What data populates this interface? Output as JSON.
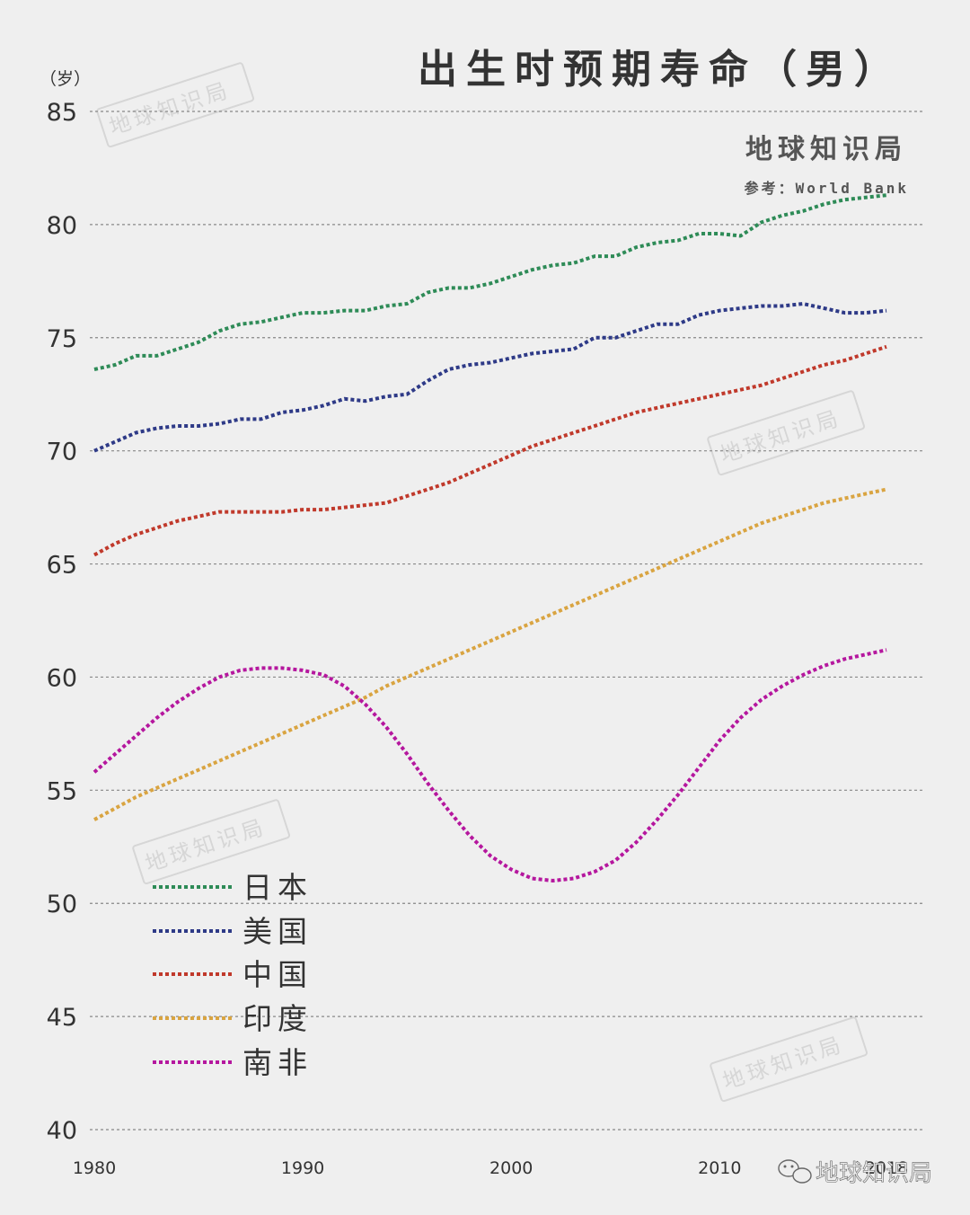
{
  "title": "出生时预期寿命（男）",
  "brand": "地球知识局",
  "source": "参考：World Bank",
  "unit_label": "（岁）",
  "watermark": "地球知识局",
  "footer_label": "地球知识局",
  "chart_data": {
    "type": "line",
    "ylim": [
      40,
      85
    ],
    "yticks": [
      40,
      45,
      50,
      55,
      60,
      65,
      70,
      75,
      80,
      85
    ],
    "xlim": [
      1980,
      2018
    ],
    "xticks": [
      1980,
      1990,
      2000,
      2010,
      2018
    ],
    "grid": true,
    "legend_position": "bottom-left",
    "series": [
      {
        "name": "日本",
        "color": "#2e8b57",
        "x": [
          1980,
          1981,
          1982,
          1983,
          1984,
          1985,
          1986,
          1987,
          1988,
          1989,
          1990,
          1991,
          1992,
          1993,
          1994,
          1995,
          1996,
          1997,
          1998,
          1999,
          2000,
          2001,
          2002,
          2003,
          2004,
          2005,
          2006,
          2007,
          2008,
          2009,
          2010,
          2011,
          2012,
          2013,
          2014,
          2015,
          2016,
          2017,
          2018
        ],
        "values": [
          73.6,
          73.8,
          74.2,
          74.2,
          74.5,
          74.8,
          75.3,
          75.6,
          75.7,
          75.9,
          76.1,
          76.1,
          76.2,
          76.2,
          76.4,
          76.5,
          77.0,
          77.2,
          77.2,
          77.4,
          77.7,
          78.0,
          78.2,
          78.3,
          78.6,
          78.6,
          79.0,
          79.2,
          79.3,
          79.6,
          79.6,
          79.5,
          80.1,
          80.4,
          80.6,
          80.9,
          81.1,
          81.2,
          81.3
        ]
      },
      {
        "name": "美国",
        "color": "#2e3a87",
        "x": [
          1980,
          1981,
          1982,
          1983,
          1984,
          1985,
          1986,
          1987,
          1988,
          1989,
          1990,
          1991,
          1992,
          1993,
          1994,
          1995,
          1996,
          1997,
          1998,
          1999,
          2000,
          2001,
          2002,
          2003,
          2004,
          2005,
          2006,
          2007,
          2008,
          2009,
          2010,
          2011,
          2012,
          2013,
          2014,
          2015,
          2016,
          2017,
          2018
        ],
        "values": [
          70.0,
          70.4,
          70.8,
          71.0,
          71.1,
          71.1,
          71.2,
          71.4,
          71.4,
          71.7,
          71.8,
          72.0,
          72.3,
          72.2,
          72.4,
          72.5,
          73.1,
          73.6,
          73.8,
          73.9,
          74.1,
          74.3,
          74.4,
          74.5,
          75.0,
          75.0,
          75.3,
          75.6,
          75.6,
          76.0,
          76.2,
          76.3,
          76.4,
          76.4,
          76.5,
          76.3,
          76.1,
          76.1,
          76.2
        ]
      },
      {
        "name": "中国",
        "color": "#c0392b",
        "x": [
          1980,
          1981,
          1982,
          1983,
          1984,
          1985,
          1986,
          1987,
          1988,
          1989,
          1990,
          1991,
          1992,
          1993,
          1994,
          1995,
          1996,
          1997,
          1998,
          1999,
          2000,
          2001,
          2002,
          2003,
          2004,
          2005,
          2006,
          2007,
          2008,
          2009,
          2010,
          2011,
          2012,
          2013,
          2014,
          2015,
          2016,
          2017,
          2018
        ],
        "values": [
          65.4,
          65.9,
          66.3,
          66.6,
          66.9,
          67.1,
          67.3,
          67.3,
          67.3,
          67.3,
          67.4,
          67.4,
          67.5,
          67.6,
          67.7,
          68.0,
          68.3,
          68.6,
          69.0,
          69.4,
          69.8,
          70.2,
          70.5,
          70.8,
          71.1,
          71.4,
          71.7,
          71.9,
          72.1,
          72.3,
          72.5,
          72.7,
          72.9,
          73.2,
          73.5,
          73.8,
          74.0,
          74.3,
          74.6
        ]
      },
      {
        "name": "印度",
        "color": "#d9a441",
        "x": [
          1980,
          1981,
          1982,
          1983,
          1984,
          1985,
          1986,
          1987,
          1988,
          1989,
          1990,
          1991,
          1992,
          1993,
          1994,
          1995,
          1996,
          1997,
          1998,
          1999,
          2000,
          2001,
          2002,
          2003,
          2004,
          2005,
          2006,
          2007,
          2008,
          2009,
          2010,
          2011,
          2012,
          2013,
          2014,
          2015,
          2016,
          2017,
          2018
        ],
        "values": [
          53.7,
          54.2,
          54.7,
          55.1,
          55.5,
          55.9,
          56.3,
          56.7,
          57.1,
          57.5,
          57.9,
          58.3,
          58.7,
          59.1,
          59.6,
          60.0,
          60.4,
          60.8,
          61.2,
          61.6,
          62.0,
          62.4,
          62.8,
          63.2,
          63.6,
          64.0,
          64.4,
          64.8,
          65.2,
          65.6,
          66.0,
          66.4,
          66.8,
          67.1,
          67.4,
          67.7,
          67.9,
          68.1,
          68.3
        ]
      },
      {
        "name": "南非",
        "color": "#b5179e",
        "x": [
          1980,
          1981,
          1982,
          1983,
          1984,
          1985,
          1986,
          1987,
          1988,
          1989,
          1990,
          1991,
          1992,
          1993,
          1994,
          1995,
          1996,
          1997,
          1998,
          1999,
          2000,
          2001,
          2002,
          2003,
          2004,
          2005,
          2006,
          2007,
          2008,
          2009,
          2010,
          2011,
          2012,
          2013,
          2014,
          2015,
          2016,
          2017,
          2018
        ],
        "values": [
          55.8,
          56.6,
          57.4,
          58.2,
          58.9,
          59.5,
          60.0,
          60.3,
          60.4,
          60.4,
          60.3,
          60.1,
          59.6,
          58.8,
          57.8,
          56.6,
          55.3,
          54.1,
          53.0,
          52.1,
          51.5,
          51.1,
          51.0,
          51.1,
          51.4,
          51.9,
          52.7,
          53.7,
          54.8,
          56.0,
          57.2,
          58.2,
          59.0,
          59.6,
          60.1,
          60.5,
          60.8,
          61.0,
          61.2
        ]
      }
    ]
  }
}
